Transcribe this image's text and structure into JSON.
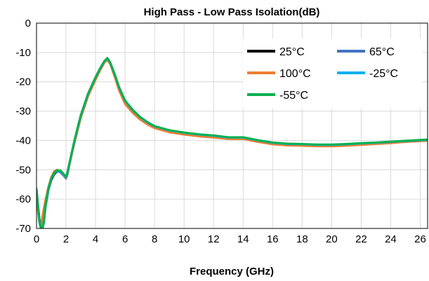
{
  "chart_data": {
    "type": "line",
    "title": "High Pass - Low Pass Isolation(dB)",
    "xlabel": "Frequency (GHz)",
    "ylabel": "",
    "xlim": [
      0,
      26.5
    ],
    "ylim": [
      -70,
      0
    ],
    "x_ticks": [
      0,
      2,
      4,
      6,
      8,
      10,
      12,
      14,
      16,
      18,
      20,
      22,
      24,
      26
    ],
    "y_ticks": [
      0,
      -10,
      -20,
      -30,
      -40,
      -50,
      -60,
      -70
    ],
    "grid": true,
    "legend_position": "top-right",
    "series": [
      {
        "name": "25°C",
        "color": "#000000",
        "x": [
          0.0,
          0.1,
          0.2,
          0.3,
          0.4,
          0.5,
          0.6,
          0.8,
          1.0,
          1.2,
          1.4,
          1.6,
          1.8,
          2.0,
          2.1,
          2.2,
          2.4,
          2.6,
          3.0,
          3.5,
          4.0,
          4.3,
          4.6,
          4.8,
          5.0,
          5.3,
          5.6,
          6.0,
          6.5,
          7.0,
          7.5,
          8.0,
          9.0,
          10.0,
          11.0,
          12.0,
          13.0,
          14.0,
          15.0,
          16.0,
          17.0,
          18.0,
          19.0,
          20.0,
          21.0,
          22.0,
          23.0,
          24.0,
          25.0,
          26.5
        ],
        "y": [
          -57,
          -62,
          -67,
          -70,
          -70,
          -68,
          -63,
          -57,
          -53.5,
          -51.5,
          -50.5,
          -50.5,
          -51.5,
          -52.5,
          -51,
          -48.5,
          -44,
          -39.5,
          -31.5,
          -24,
          -18.5,
          -15.5,
          -13,
          -12,
          -13.5,
          -17.5,
          -22,
          -26.5,
          -29.5,
          -32,
          -33.8,
          -35.2,
          -36.6,
          -37.4,
          -38,
          -38.3,
          -39,
          -39,
          -40,
          -40.8,
          -41.2,
          -41.3,
          -41.5,
          -41.5,
          -41.3,
          -41,
          -40.8,
          -40.5,
          -40.2,
          -39.8
        ]
      },
      {
        "name": "65°C",
        "color": "#4472C4",
        "x": [
          0.0,
          0.1,
          0.2,
          0.3,
          0.4,
          0.5,
          0.6,
          0.8,
          1.0,
          1.2,
          1.4,
          1.6,
          1.8,
          2.0,
          2.1,
          2.2,
          2.4,
          2.6,
          3.0,
          3.5,
          4.0,
          4.3,
          4.6,
          4.8,
          5.0,
          5.3,
          5.6,
          6.0,
          6.5,
          7.0,
          7.5,
          8.0,
          9.0,
          10.0,
          11.0,
          12.0,
          13.0,
          14.0,
          15.0,
          16.0,
          17.0,
          18.0,
          19.0,
          20.0,
          21.0,
          22.0,
          23.0,
          24.0,
          25.0,
          26.5
        ],
        "y": [
          -58,
          -63,
          -68,
          -70,
          -70,
          -67,
          -62,
          -56.5,
          -53,
          -51,
          -50.5,
          -50.8,
          -51.8,
          -53,
          -51.5,
          -49,
          -44.5,
          -40,
          -32,
          -24.5,
          -19,
          -16,
          -13.2,
          -12.2,
          -13.8,
          -18,
          -22.5,
          -27,
          -30,
          -32.3,
          -34,
          -35.4,
          -36.8,
          -37.6,
          -38.2,
          -38.6,
          -39.2,
          -39.2,
          -40.2,
          -41,
          -41.4,
          -41.5,
          -41.7,
          -41.7,
          -41.5,
          -41.2,
          -41,
          -40.7,
          -40.4,
          -40
        ]
      },
      {
        "name": "100°C",
        "color": "#ED7D31",
        "x": [
          0.0,
          0.1,
          0.2,
          0.3,
          0.4,
          0.5,
          0.6,
          0.8,
          1.0,
          1.2,
          1.4,
          1.6,
          1.8,
          2.0,
          2.1,
          2.2,
          2.4,
          2.6,
          3.0,
          3.5,
          4.0,
          4.3,
          4.6,
          4.8,
          5.0,
          5.3,
          5.6,
          6.0,
          6.5,
          7.0,
          7.5,
          8.0,
          9.0,
          10.0,
          11.0,
          12.0,
          13.0,
          14.0,
          15.0,
          16.0,
          17.0,
          18.0,
          19.0,
          20.0,
          21.0,
          22.0,
          23.0,
          24.0,
          25.0,
          26.5
        ],
        "y": [
          -60,
          -64,
          -68,
          -69,
          -66,
          -63,
          -60.5,
          -56,
          -52.5,
          -50.5,
          -50,
          -50.5,
          -51.5,
          -52.8,
          -51.2,
          -49,
          -44.5,
          -40.2,
          -32.3,
          -24.8,
          -19.3,
          -16.2,
          -13.5,
          -12.5,
          -14,
          -18.3,
          -23,
          -27.5,
          -30.5,
          -32.8,
          -34.5,
          -35.8,
          -37.2,
          -38,
          -38.6,
          -39,
          -39.5,
          -39.5,
          -40.5,
          -41.3,
          -41.7,
          -41.8,
          -42,
          -42,
          -41.8,
          -41.5,
          -41.2,
          -40.9,
          -40.5,
          -40.1
        ]
      },
      {
        "name": "-25°C",
        "color": "#00B0F0",
        "x": [
          0.0,
          0.1,
          0.2,
          0.3,
          0.4,
          0.5,
          0.6,
          0.8,
          1.0,
          1.2,
          1.4,
          1.6,
          1.8,
          2.0,
          2.1,
          2.2,
          2.4,
          2.6,
          3.0,
          3.5,
          4.0,
          4.3,
          4.6,
          4.8,
          5.0,
          5.3,
          5.6,
          6.0,
          6.5,
          7.0,
          7.5,
          8.0,
          9.0,
          10.0,
          11.0,
          12.0,
          13.0,
          14.0,
          15.0,
          16.0,
          17.0,
          18.0,
          19.0,
          20.0,
          21.0,
          22.0,
          23.0,
          24.0,
          25.0,
          26.5
        ],
        "y": [
          -57.5,
          -62.5,
          -68,
          -70,
          -70,
          -68,
          -63,
          -57,
          -53.2,
          -51.2,
          -50.3,
          -50.4,
          -51.4,
          -52.6,
          -51,
          -48.6,
          -44,
          -39.6,
          -31.6,
          -24.1,
          -18.6,
          -15.6,
          -13,
          -12,
          -13.6,
          -17.6,
          -22,
          -26.5,
          -29.6,
          -32,
          -33.8,
          -35.2,
          -36.6,
          -37.4,
          -38,
          -38.4,
          -39,
          -39,
          -40,
          -40.8,
          -41.2,
          -41.3,
          -41.5,
          -41.5,
          -41.3,
          -41,
          -40.8,
          -40.5,
          -40.2,
          -39.8
        ]
      },
      {
        "name": "-55°C",
        "color": "#00B050",
        "x": [
          0.0,
          0.1,
          0.2,
          0.3,
          0.4,
          0.5,
          0.6,
          0.8,
          1.0,
          1.2,
          1.4,
          1.6,
          1.8,
          2.0,
          2.1,
          2.2,
          2.4,
          2.6,
          3.0,
          3.5,
          4.0,
          4.3,
          4.6,
          4.8,
          5.0,
          5.3,
          5.6,
          6.0,
          6.5,
          7.0,
          7.5,
          8.0,
          9.0,
          10.0,
          11.0,
          12.0,
          13.0,
          14.0,
          15.0,
          16.0,
          17.0,
          18.0,
          19.0,
          20.0,
          21.0,
          22.0,
          23.0,
          24.0,
          25.0,
          26.5
        ],
        "y": [
          -56.5,
          -62,
          -67.5,
          -70,
          -70,
          -67.5,
          -62.5,
          -56.5,
          -53,
          -51,
          -50.2,
          -50.2,
          -51.2,
          -52.4,
          -50.8,
          -48.4,
          -43.8,
          -39.4,
          -31.4,
          -24,
          -18.5,
          -15.5,
          -12.9,
          -11.9,
          -13.5,
          -17.5,
          -21.9,
          -26.4,
          -29.5,
          -31.9,
          -33.7,
          -35.1,
          -36.5,
          -37.3,
          -37.9,
          -38.3,
          -38.9,
          -38.9,
          -39.9,
          -40.7,
          -41.1,
          -41.2,
          -41.4,
          -41.4,
          -41.2,
          -40.9,
          -40.7,
          -40.4,
          -40.1,
          -39.7
        ]
      }
    ]
  }
}
